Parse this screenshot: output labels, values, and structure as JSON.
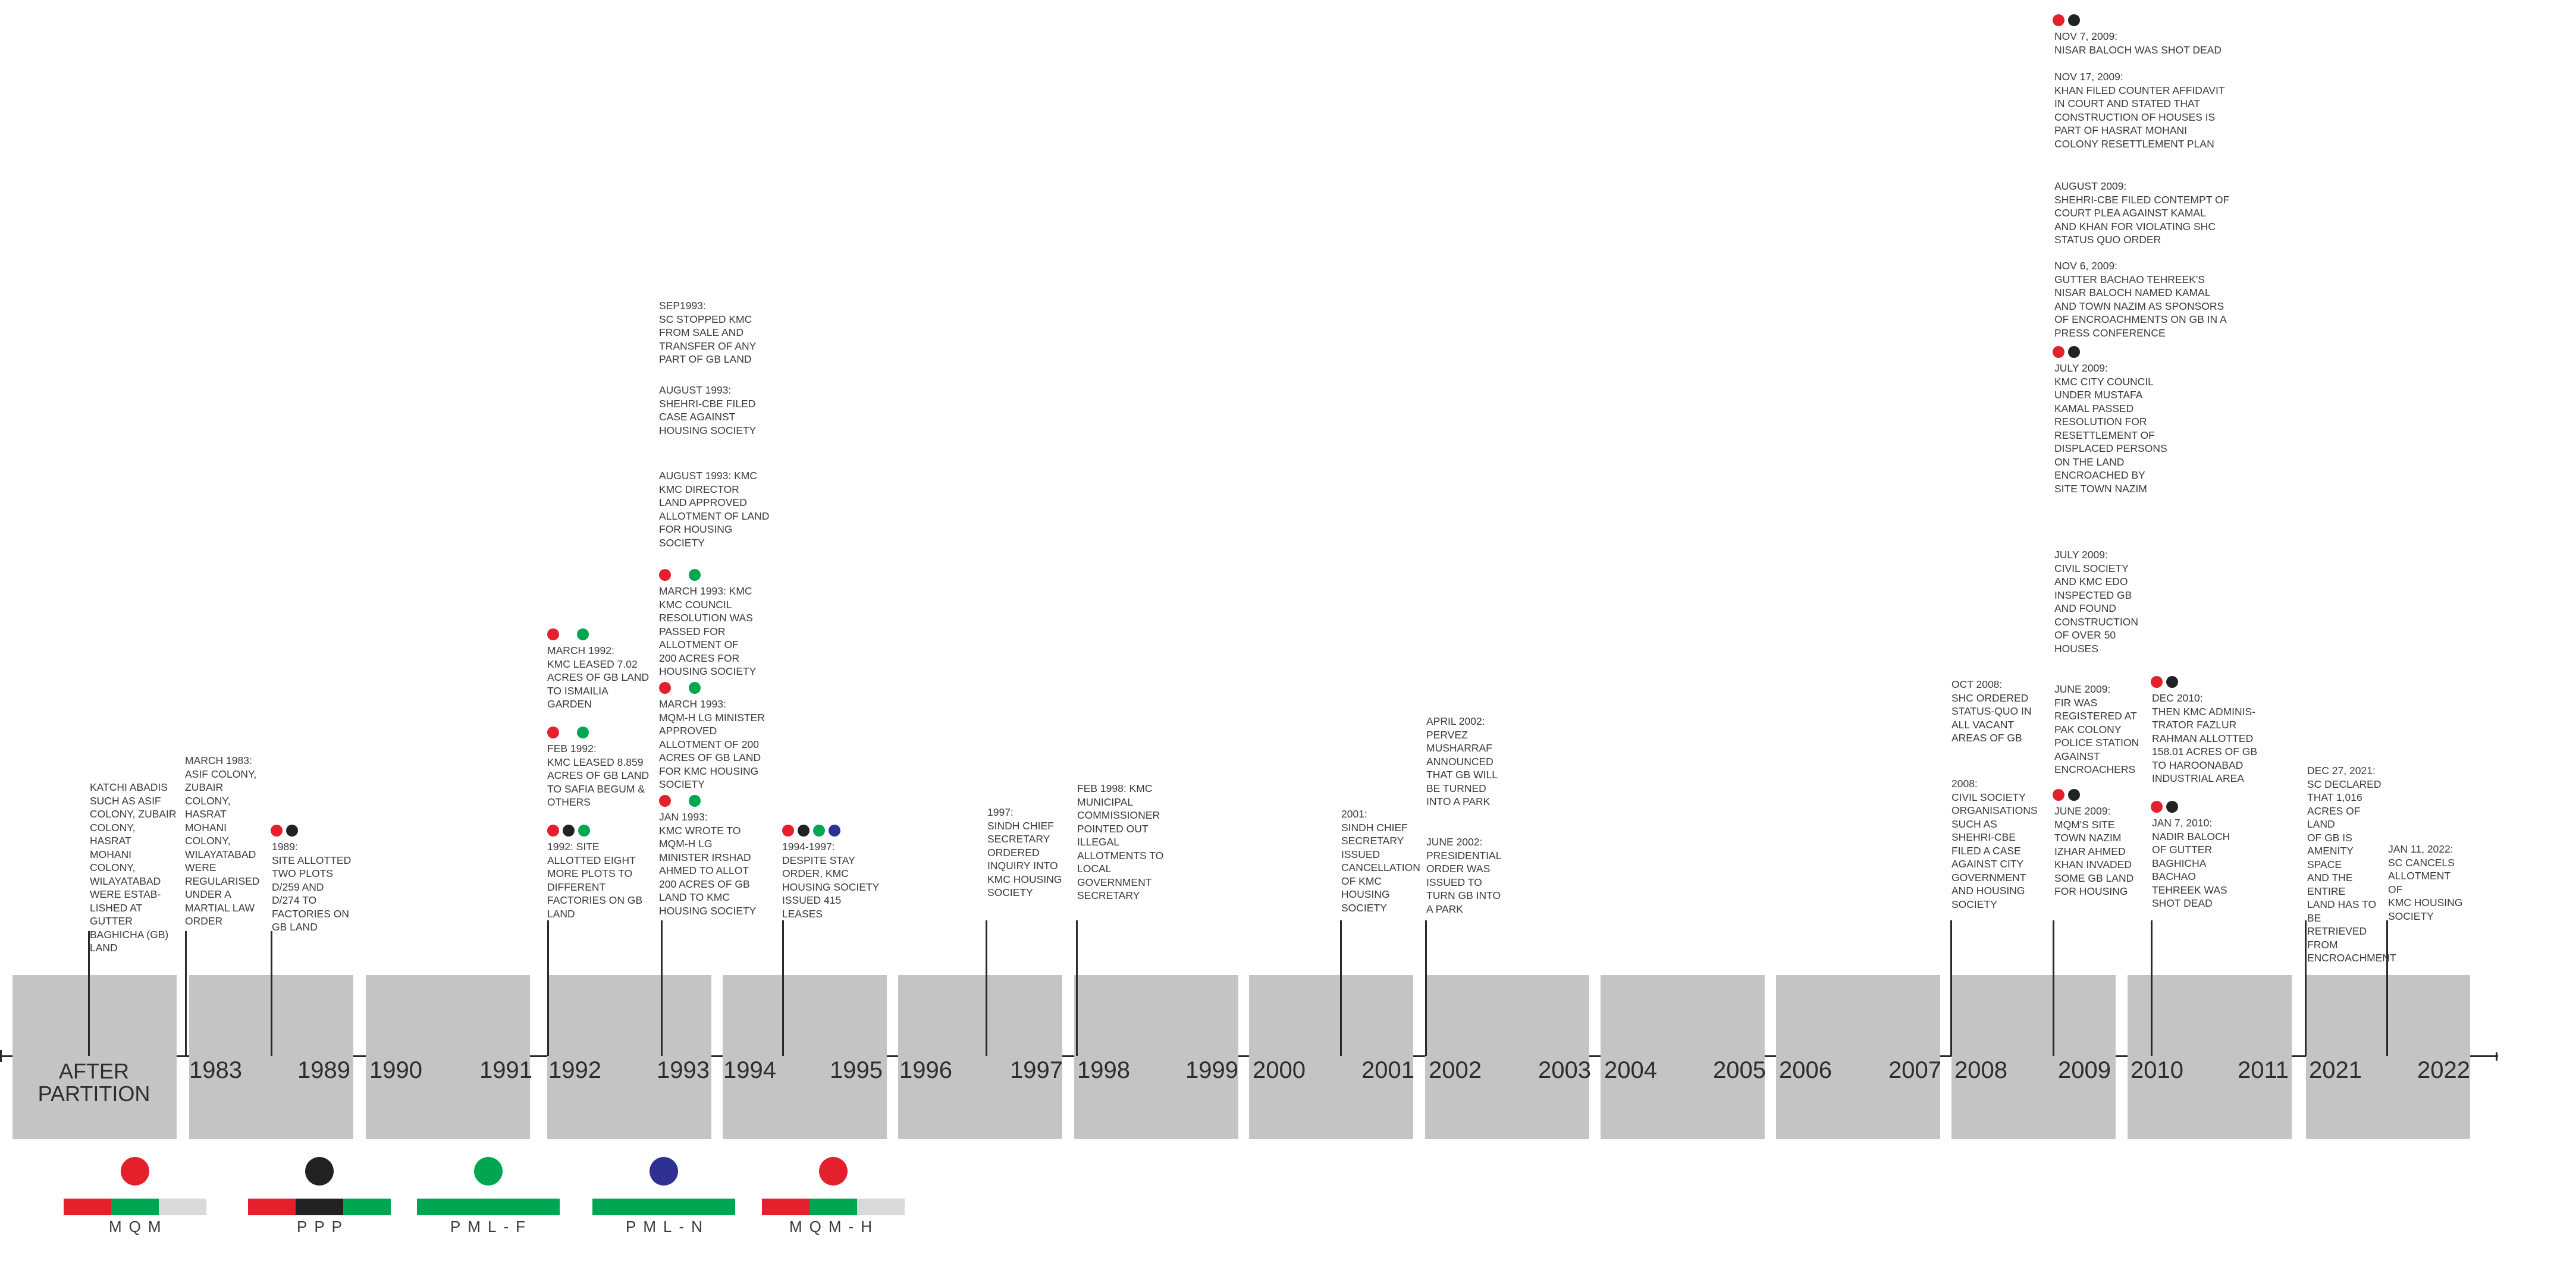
{
  "colors": {
    "panel": "#c4c4c5",
    "mqm": "#e4202d",
    "ppp": "#222222",
    "pmlf": "#00a651",
    "pmln": "#2e3192",
    "grey": "#d9d9d9"
  },
  "periods": [
    {
      "label_a": "AFTER\nPARTITION",
      "label_b": ""
    },
    {
      "label_a": "1983",
      "label_b": "1989"
    },
    {
      "label_a": "1990",
      "label_b": "1991"
    },
    {
      "label_a": "1992",
      "label_b": "1993"
    },
    {
      "label_a": "1994",
      "label_b": "1995"
    },
    {
      "label_a": "1996",
      "label_b": "1997"
    },
    {
      "label_a": "1998",
      "label_b": "1999"
    },
    {
      "label_a": "2000",
      "label_b": "2001"
    },
    {
      "label_a": "2002",
      "label_b": "2003"
    },
    {
      "label_a": "2004",
      "label_b": "2005"
    },
    {
      "label_a": "2006",
      "label_b": "2007"
    },
    {
      "label_a": "2008",
      "label_b": "2009"
    },
    {
      "label_a": "2010",
      "label_b": "2011"
    },
    {
      "label_a": "2021",
      "label_b": "2022"
    }
  ],
  "events": [
    {
      "text": "KATCHI ABADIS\nSUCH AS ASIF\nCOLONY, ZUBAIR\nCOLONY, HASRAT\nMOHANI COLONY,\nWILAYATABAD\nWERE ESTAB-\nLISHED AT\nGUTTER\nBAGHICHA (GB)\nLAND",
      "parties": []
    },
    {
      "text": "MARCH 1983:\nASIF COLONY,\nZUBAIR\nCOLONY,\nHASRAT\nMOHANI\nCOLONY,\nWILAYATABAD\nWERE\nREGULARISED\nUNDER A\nMARTIAL LAW\nORDER",
      "parties": []
    },
    {
      "text": "1989:\nSITE ALLOTTED\nTWO PLOTS\nD/259 AND\nD/274 TO\nFACTORIES ON\nGB LAND",
      "parties": [
        "mqm",
        "ppp"
      ]
    },
    {
      "text": "MARCH 1992:\nKMC LEASED 7.02\nACRES OF GB LAND\nTO ISMAILIA\nGARDEN",
      "parties": [
        "mqm",
        "pmlf"
      ]
    },
    {
      "text": "FEB 1992:\nKMC LEASED 8.859\nACRES OF GB LAND\nTO SAFIA BEGUM &\nOTHERS",
      "parties": [
        "mqm",
        "pmlf"
      ]
    },
    {
      "text": "1992: SITE\nALLOTTED EIGHT\nMORE PLOTS TO\nDIFFERENT\nFACTORIES  ON GB\nLAND",
      "parties": [
        "mqm",
        "ppp",
        "pmlf"
      ]
    },
    {
      "text": "SEP1993:\nSC STOPPED KMC\nFROM SALE AND\nTRANSFER OF ANY\nPART OF GB LAND",
      "parties": []
    },
    {
      "text": "AUGUST 1993:\nSHEHRI-CBE FILED\nCASE AGAINST\nHOUSING SOCIETY",
      "parties": []
    },
    {
      "text": "AUGUST 1993: KMC\nKMC DIRECTOR\nLAND APPROVED\nALLOTMENT OF LAND\nFOR HOUSING\nSOCIETY",
      "parties": []
    },
    {
      "text": "MARCH 1993: KMC\nKMC COUNCIL\nRESOLUTION WAS\nPASSED FOR\nALLOTMENT OF\n200 ACRES FOR\nHOUSING SOCIETY",
      "parties": [
        "mqm",
        "pmlf"
      ]
    },
    {
      "text": "MARCH 1993:\nMQM-H LG MINISTER\nAPPROVED\nALLOTMENT OF 200\nACRES OF GB LAND\nFOR KMC HOUSING\nSOCIETY",
      "parties": [
        "mqm",
        "pmlf"
      ]
    },
    {
      "text": "JAN 1993:\nKMC WROTE TO\nMQM-H LG\nMINISTER IRSHAD\nAHMED TO ALLOT\n200 ACRES OF GB\nLAND TO KMC\nHOUSING SOCIETY",
      "parties": [
        "mqm",
        "pmlf"
      ]
    },
    {
      "text": "1994-1997:\nDESPITE STAY\nORDER, KMC\nHOUSING SOCIETY\nISSUED 415\nLEASES",
      "parties": [
        "mqm",
        "ppp",
        "pmlf",
        "pmln"
      ]
    },
    {
      "text": "1997:\nSINDH CHIEF\nSECRETARY\nORDERED\nINQUIRY INTO\nKMC HOUSING\nSOCIETY",
      "parties": []
    },
    {
      "text": "FEB 1998: KMC\nMUNICIPAL\nCOMMISSIONER\nPOINTED OUT\nILLEGAL\nALLOTMENTS TO\nLOCAL\nGOVERNMENT\nSECRETARY",
      "parties": []
    },
    {
      "text": "2001:\nSINDH CHIEF\nSECRETARY\nISSUED\nCANCELLATION\nOF KMC\nHOUSING\nSOCIETY",
      "parties": []
    },
    {
      "text": "APRIL 2002:\nPERVEZ\nMUSHARRAF\nANNOUNCED\nTHAT GB WILL\nBE TURNED\nINTO A PARK",
      "parties": []
    },
    {
      "text": "JUNE 2002:\nPRESIDENTIAL\nORDER WAS\nISSUED TO\nTURN GB INTO\nA PARK",
      "parties": []
    },
    {
      "text": "OCT 2008:\nSHC ORDERED\nSTATUS-QUO IN\nALL VACANT\nAREAS OF GB",
      "parties": []
    },
    {
      "text": "2008:\nCIVIL SOCIETY\nORGANISATIONS\nSUCH AS\nSHEHRI-CBE\nFILED A CASE\nAGAINST CITY\nGOVERNMENT\nAND HOUSING\nSOCIETY",
      "parties": []
    },
    {
      "text": "NOV 7, 2009:\nNISAR BALOCH WAS SHOT DEAD",
      "parties": [
        "mqm",
        "ppp"
      ]
    },
    {
      "text": "NOV 17, 2009:\nKHAN FILED COUNTER AFFIDAVIT\nIN COURT AND STATED THAT\nCONSTRUCTION OF HOUSES IS\nPART OF HASRAT MOHANI\nCOLONY RESETTLEMENT PLAN",
      "parties": []
    },
    {
      "text": "AUGUST 2009:\nSHEHRI-CBE FILED CONTEMPT OF\nCOURT PLEA AGAINST KAMAL\nAND KHAN FOR VIOLATING SHC\nSTATUS QUO ORDER",
      "parties": []
    },
    {
      "text": "NOV 6, 2009:\nGUTTER BACHAO TEHREEK'S\nNISAR BALOCH NAMED KAMAL\nAND TOWN NAZIM AS SPONSORS\nOF ENCROACHMENTS ON GB IN A\nPRESS CONFERENCE",
      "parties": []
    },
    {
      "text": "JULY 2009:\nKMC CITY COUNCIL\nUNDER MUSTAFA\nKAMAL PASSED\nRESOLUTION FOR\nRESETTLEMENT OF\nDISPLACED PERSONS\nON THE LAND\nENCROACHED BY\nSITE TOWN NAZIM",
      "parties": [
        "mqm",
        "ppp"
      ]
    },
    {
      "text": "JULY 2009:\nCIVIL SOCIETY\nAND KMC EDO\nINSPECTED GB\nAND FOUND\nCONSTRUCTION\nOF OVER 50\nHOUSES",
      "parties": []
    },
    {
      "text": "JUNE 2009:\nFIR WAS\nREGISTERED AT\nPAK COLONY\nPOLICE STATION\nAGAINST\nENCROACHERS",
      "parties": []
    },
    {
      "text": "JUNE 2009:\nMQM'S SITE\nTOWN NAZIM\nIZHAR AHMED\nKHAN INVADED\nSOME GB LAND\nFOR HOUSING",
      "parties": [
        "mqm",
        "ppp"
      ]
    },
    {
      "text": "DEC 2010:\nTHEN KMC ADMINIS-\nTRATOR FAZLUR\nRAHMAN ALLOTTED\n158.01 ACRES OF GB\nTO HAROONABAD\nINDUSTRIAL AREA",
      "parties": [
        "mqm",
        "ppp"
      ]
    },
    {
      "text": "JAN 7, 2010:\nNADIR BALOCH\nOF GUTTER\nBAGHICHA\nBACHAO\nTEHREEK WAS\nSHOT DEAD",
      "parties": [
        "mqm",
        "ppp"
      ]
    },
    {
      "text": "DEC 27, 2021:\nSC DECLARED\nTHAT 1,016\nACRES OF LAND\nOF GB IS\nAMENITY SPACE\nAND THE ENTIRE\nLAND HAS TO BE\nRETRIEVED\nFROM\nENCROACHMENT",
      "parties": []
    },
    {
      "text": "JAN 11, 2022:\nSC CANCELS\nALLOTMENT OF\nKMC HOUSING\nSOCIETY",
      "parties": []
    }
  ],
  "legend": [
    {
      "label": "MQM",
      "dot": "mqm",
      "bar": [
        "mqm",
        "pmlf",
        "grey"
      ]
    },
    {
      "label": "PPP",
      "dot": "ppp",
      "bar": [
        "mqm",
        "ppp",
        "pmlf"
      ]
    },
    {
      "label": "PML-F",
      "dot": "pmlf",
      "bar": [
        "pmlf"
      ]
    },
    {
      "label": "PML-N",
      "dot": "pmln",
      "bar": [
        "pmlf"
      ]
    },
    {
      "label": "MQM-H",
      "dot": "mqm",
      "bar": [
        "mqm",
        "pmlf",
        "grey"
      ]
    }
  ]
}
